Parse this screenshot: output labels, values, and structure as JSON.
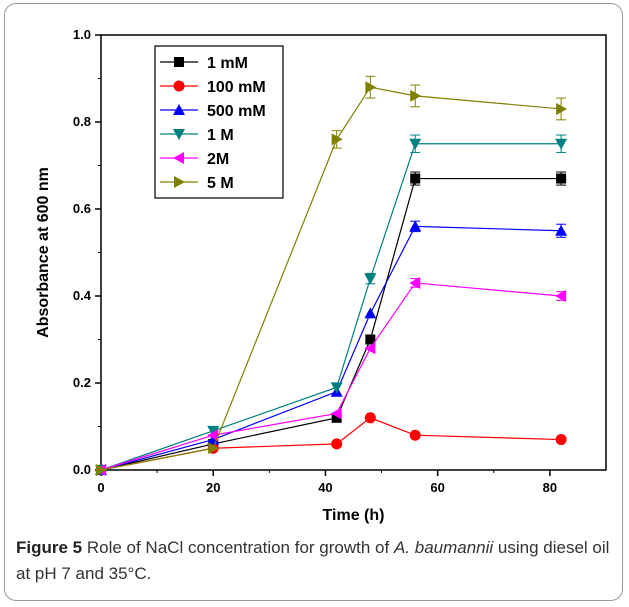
{
  "caption": {
    "label": "Figure 5",
    "text_before": " Role of NaCl concentration for growth of ",
    "species": "A. baumannii",
    "text_after": " using diesel oil at pH 7 and 35°C."
  },
  "chart_data": {
    "type": "line",
    "title": "",
    "xlabel": "Time (h)",
    "ylabel": "Absorbance at 600 nm",
    "xlim": [
      0,
      90
    ],
    "ylim": [
      0,
      1.0
    ],
    "xticks": [
      0,
      20,
      40,
      60,
      80
    ],
    "yticks": [
      0.0,
      0.2,
      0.4,
      0.6,
      0.8,
      1.0
    ],
    "ytick_labels": [
      "0.0",
      "0.2",
      "0.4",
      "0.6",
      "0.8",
      "1.0"
    ],
    "grid": false,
    "legend_position": "top-left",
    "x": [
      0,
      20,
      42,
      48,
      56,
      82
    ],
    "series": [
      {
        "name": "1 mM",
        "color": "#000000",
        "marker": "square",
        "values": [
          0.0,
          0.06,
          0.12,
          0.3,
          0.67,
          0.67
        ],
        "errors": [
          0,
          0,
          0,
          0,
          0.015,
          0.015
        ]
      },
      {
        "name": "100 mM",
        "color": "#ff0000",
        "marker": "circle",
        "values": [
          0.0,
          0.05,
          0.06,
          0.12,
          0.08,
          0.07
        ],
        "errors": [
          0,
          0,
          0,
          0,
          0,
          0
        ]
      },
      {
        "name": "500 mM",
        "color": "#0000ff",
        "marker": "triangle-up",
        "values": [
          0.0,
          0.07,
          0.18,
          0.36,
          0.56,
          0.55
        ],
        "errors": [
          0,
          0,
          0,
          0,
          0.012,
          0.015
        ]
      },
      {
        "name": "1 M",
        "color": "#008080",
        "marker": "triangle-down",
        "values": [
          0.0,
          0.09,
          0.19,
          0.44,
          0.75,
          0.75
        ],
        "errors": [
          0,
          0,
          0,
          0.012,
          0.02,
          0.02
        ]
      },
      {
        "name": "2M",
        "color": "#ff00ff",
        "marker": "triangle-left",
        "values": [
          0.0,
          0.08,
          0.13,
          0.28,
          0.43,
          0.4
        ],
        "errors": [
          0,
          0,
          0,
          0,
          0.01,
          0.01
        ]
      },
      {
        "name": "5 M",
        "color": "#808000",
        "marker": "triangle-right",
        "values": [
          0.0,
          0.05,
          0.76,
          0.88,
          0.86,
          0.83
        ],
        "errors": [
          0,
          0,
          0.02,
          0.025,
          0.025,
          0.025
        ]
      }
    ]
  }
}
